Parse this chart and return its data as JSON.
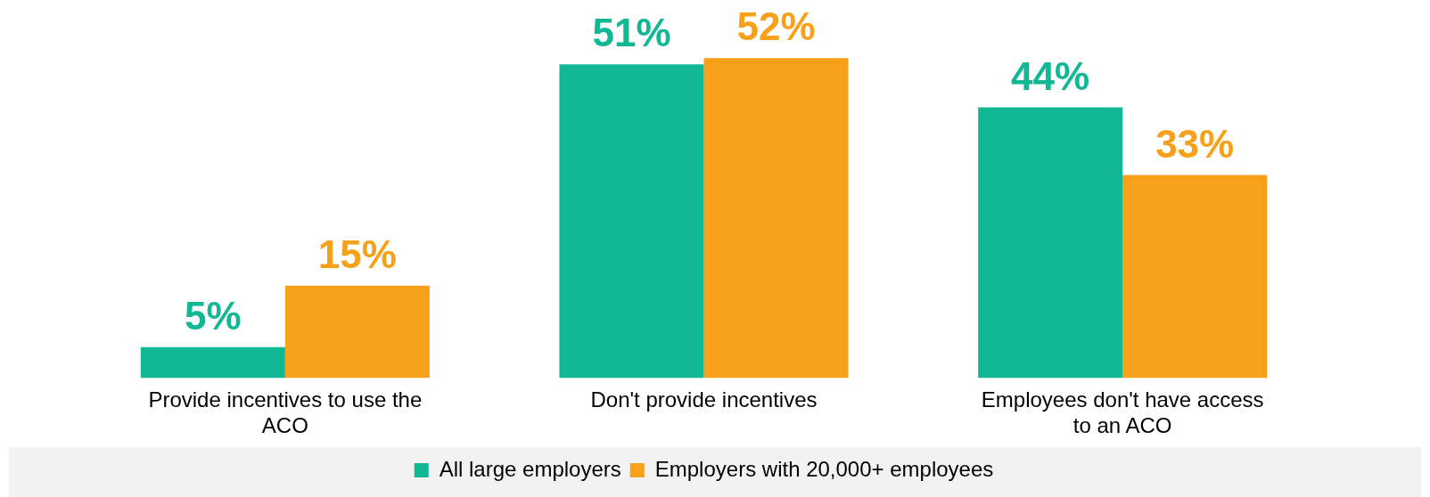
{
  "chart_data": {
    "type": "bar",
    "categories": [
      "Provide incentives to use the ACO",
      "Don't provide incentives",
      "Employees don't have access to an ACO"
    ],
    "series": [
      {
        "name": "All large employers",
        "color": "#12b795",
        "values": [
          5,
          51,
          44
        ],
        "value_labels": [
          "5%",
          "51%",
          "44%"
        ]
      },
      {
        "name": "Employers with 20,000+ employees",
        "color": "#f7a019",
        "values": [
          15,
          52,
          33
        ],
        "value_labels": [
          "15%",
          "52%",
          "33%"
        ]
      }
    ],
    "legend": "bottom",
    "grid": false,
    "tick_labels": "x"
  }
}
